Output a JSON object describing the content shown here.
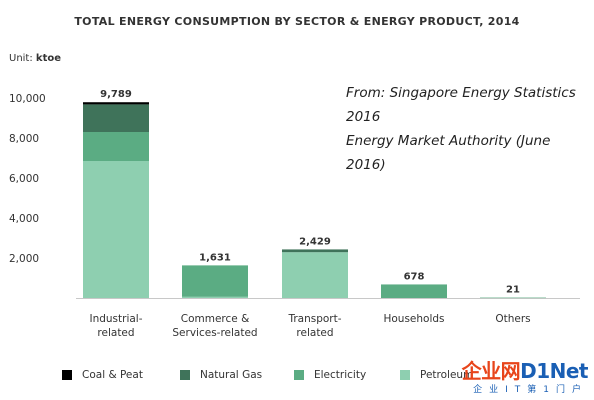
{
  "chart_data": {
    "type": "bar",
    "title": "TOTAL ENERGY CONSUMPTION BY SECTOR & ENERGY PRODUCT, 2014",
    "unit_label": "Unit:",
    "unit_value": "ktoe",
    "source_lines": [
      "From: Singapore Energy Statistics 2016",
      "Energy Market Authority (June 2016)"
    ],
    "categories": [
      "Industrial-\nrelated",
      "Commerce &\nServices-related",
      "Transport-\nrelated",
      "Households",
      "Others"
    ],
    "series": [
      {
        "name": "Petroleum",
        "color": "#8ecfb0",
        "values": [
          6850,
          60,
          2290,
          0,
          0
        ]
      },
      {
        "name": "Electricity",
        "color": "#5bac83",
        "values": [
          1450,
          1571,
          0,
          678,
          21
        ]
      },
      {
        "name": "Natural Gas",
        "color": "#3f735a",
        "values": [
          1380,
          0,
          139,
          0,
          0
        ]
      },
      {
        "name": "Coal & Peat",
        "color": "#000000",
        "values": [
          109,
          0,
          0,
          0,
          0
        ]
      }
    ],
    "totals": [
      "9,789",
      "1,631",
      "2,429",
      "678",
      "21"
    ],
    "totals_values": [
      9789,
      1631,
      2429,
      678,
      21
    ],
    "yticks": [
      "2,000",
      "4,000",
      "6,000",
      "8,000",
      "10,000"
    ],
    "ylim": [
      0,
      10000
    ],
    "legend_order": [
      "Coal & Peat",
      "Natural Gas",
      "Electricity",
      "Petroleum"
    ],
    "legend_placement": "bottom"
  },
  "watermark": {
    "main": "企业网",
    "brand": "D1Net",
    "sub": "企业IT第1门户"
  }
}
